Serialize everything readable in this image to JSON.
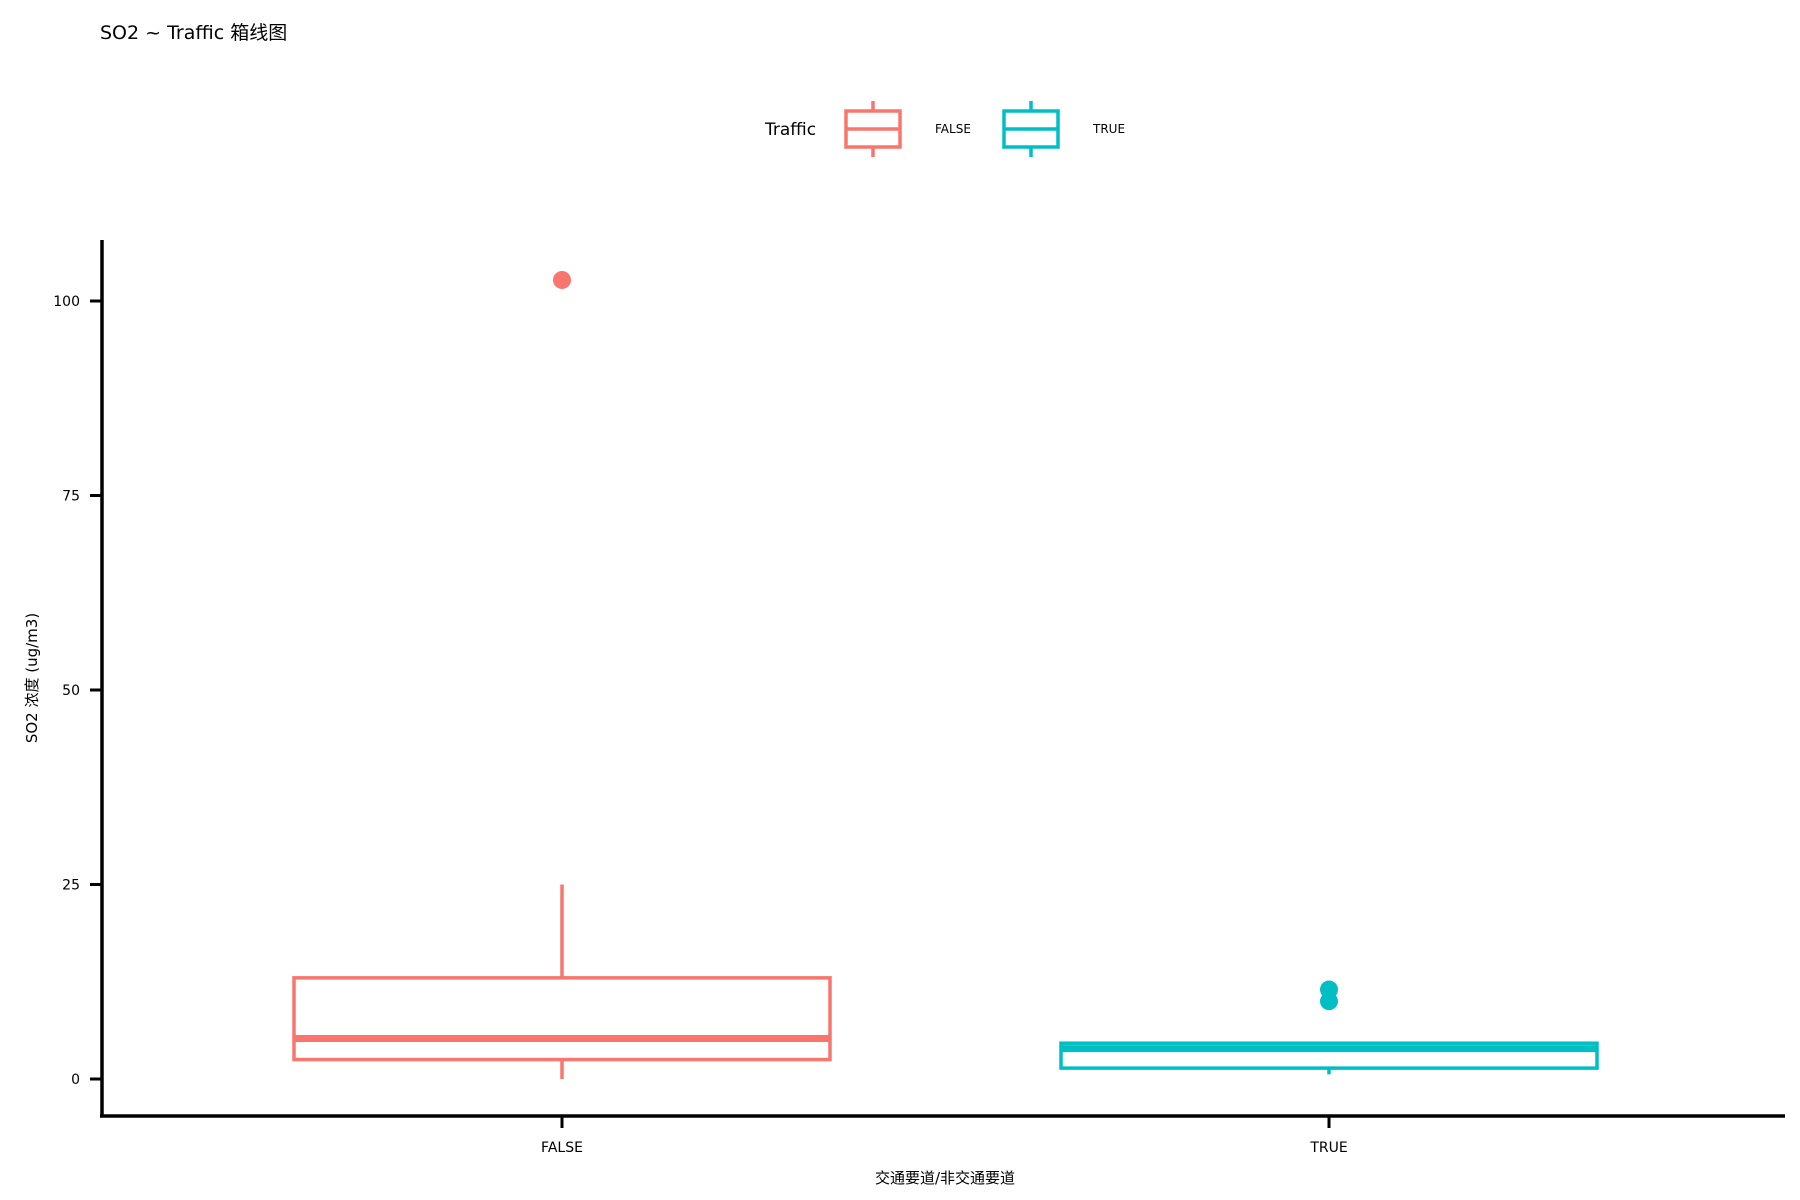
{
  "chart_data": {
    "type": "boxplot",
    "title": "SO2 ~ Traffic 箱线图",
    "xlabel": "交通要道/非交通要道",
    "ylabel": "SO2 浓度 (ug/m3)",
    "ylim": [
      -5,
      108
    ],
    "yticks": [
      0,
      25,
      50,
      75,
      100
    ],
    "grid": false,
    "legend": {
      "title": "Traffic",
      "position": "top-center",
      "entries": [
        "FALSE",
        "TRUE"
      ]
    },
    "categories": [
      "FALSE",
      "TRUE"
    ],
    "series": [
      {
        "name": "FALSE",
        "color": "#F8766D",
        "whisker_low": 0,
        "q1": 2.5,
        "median": 5.2,
        "q3": 13,
        "whisker_high": 25,
        "outliers": [
          102.7
        ]
      },
      {
        "name": "TRUE",
        "color": "#00BFC4",
        "whisker_low": 0.6,
        "q1": 1.4,
        "median": 3.9,
        "q3": 4.6,
        "whisker_high": 4.6,
        "outliers": [
          10.0,
          11.5
        ]
      }
    ]
  }
}
